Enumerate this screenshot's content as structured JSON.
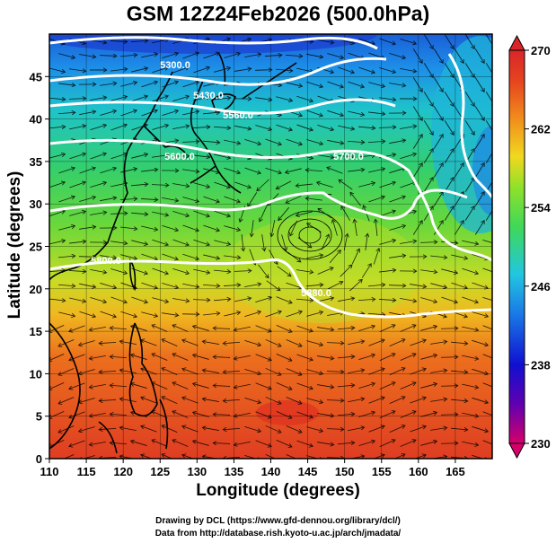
{
  "title": "GSM 12Z24Feb2026 (500.0hPa)",
  "xlabel": "Longitude (degrees)",
  "ylabel": "Latitude  (degrees)",
  "credits": [
    "Drawing by DCL (https://www.gfd-dennou.org/library/dcl/)",
    "Data from http://database.rish.kyoto-u.ac.jp/arch/jmadata/"
  ],
  "map": {
    "lon_range": [
      110,
      170
    ],
    "lat_range": [
      0,
      50
    ],
    "lon_ticks": [
      "110",
      "115",
      "120",
      "125",
      "130",
      "135",
      "140",
      "145",
      "150",
      "155",
      "160",
      "165"
    ],
    "lat_ticks": [
      "0",
      "5",
      "10",
      "15",
      "20",
      "25",
      "30",
      "35",
      "40",
      "45"
    ],
    "contour_labels": [
      "5300.0",
      "5430.0",
      "5560.0",
      "5600.0",
      "5700.0",
      "5800.0",
      "5880.0"
    ],
    "colorbar": {
      "labels": [
        "270",
        "262",
        "254",
        "246",
        "238",
        "230"
      ],
      "colors": [
        "#d6006a",
        "#6000b0",
        "#1010d0",
        "#1a7ae6",
        "#22c6e0",
        "#3fd85a",
        "#8ee12a",
        "#f1d81f",
        "#f08a1c",
        "#e6451e",
        "#d9262a"
      ]
    }
  }
}
